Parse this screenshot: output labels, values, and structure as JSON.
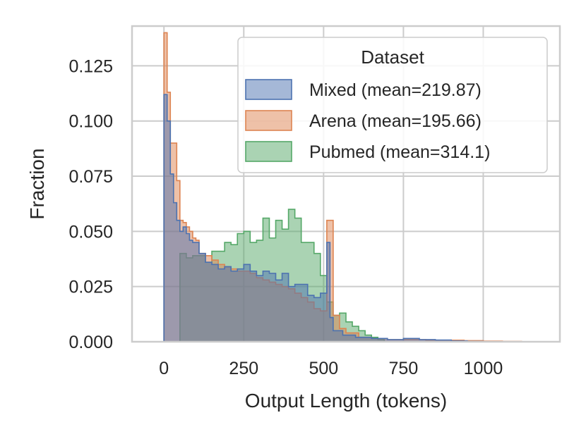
{
  "chart_data": {
    "type": "histogram",
    "xlabel": "Output Length (tokens)",
    "ylabel": "Fraction",
    "xlim": [
      -100,
      1240
    ],
    "ylim": [
      0,
      0.143
    ],
    "xticks": [
      0,
      250,
      500,
      750,
      1000
    ],
    "yticks": [
      0.0,
      0.025,
      0.05,
      0.075,
      0.1,
      0.125
    ],
    "xtick_labels": [
      "0",
      "250",
      "500",
      "750",
      "1000"
    ],
    "ytick_labels": [
      "0.000",
      "0.025",
      "0.050",
      "0.075",
      "0.100",
      "0.125"
    ],
    "grid": true,
    "legend": {
      "title": "Dataset",
      "position": "top-right"
    },
    "series": [
      {
        "name": "Pubmed (mean=314.1)",
        "color": "#55a868",
        "bin_edges": [
          0,
          50,
          70,
          90,
          110,
          130,
          150,
          170,
          190,
          210,
          230,
          250,
          270,
          290,
          310,
          330,
          350,
          370,
          390,
          410,
          430,
          450,
          470,
          490,
          510,
          530,
          550,
          570,
          590,
          610,
          630,
          650,
          670,
          690,
          710
        ],
        "values": [
          0.0,
          0.04,
          0.038,
          0.039,
          0.039,
          0.036,
          0.041,
          0.041,
          0.045,
          0.044,
          0.049,
          0.05,
          0.045,
          0.046,
          0.056,
          0.047,
          0.055,
          0.051,
          0.06,
          0.056,
          0.045,
          0.045,
          0.04,
          0.03,
          0.018,
          0.012,
          0.013,
          0.009,
          0.007,
          0.005,
          0.003,
          0.002,
          0.001,
          0.0
        ]
      },
      {
        "name": "Arena (mean=195.66)",
        "color": "#dd8452",
        "bin_edges": [
          0,
          10,
          20,
          30,
          40,
          50,
          60,
          70,
          80,
          90,
          100,
          110,
          130,
          150,
          170,
          190,
          210,
          230,
          250,
          270,
          290,
          310,
          330,
          350,
          370,
          390,
          410,
          430,
          450,
          470,
          490,
          510,
          530,
          550,
          570,
          610,
          650,
          700,
          760,
          820,
          880,
          940,
          1000,
          1060,
          1120
        ],
        "values": [
          0.14,
          0.113,
          0.09,
          0.09,
          0.073,
          0.055,
          0.054,
          0.052,
          0.05,
          0.047,
          0.046,
          0.04,
          0.039,
          0.037,
          0.035,
          0.034,
          0.033,
          0.032,
          0.032,
          0.031,
          0.029,
          0.028,
          0.027,
          0.026,
          0.025,
          0.024,
          0.022,
          0.02,
          0.018,
          0.015,
          0.014,
          0.055,
          0.012,
          0.006,
          0.004,
          0.002,
          0.0015,
          0.001,
          0.001,
          0.0007,
          0.0007,
          0.0005,
          0.0003,
          0.0002
        ]
      },
      {
        "name": "Mixed (mean=219.87)",
        "color": "#4c72b0",
        "bin_edges": [
          0,
          10,
          20,
          30,
          40,
          50,
          60,
          70,
          80,
          90,
          110,
          130,
          150,
          170,
          190,
          210,
          230,
          250,
          270,
          290,
          310,
          330,
          350,
          370,
          390,
          410,
          430,
          450,
          470,
          490,
          510,
          520,
          530,
          560,
          600,
          650,
          700,
          750,
          800,
          850,
          900,
          950,
          1000
        ],
        "values": [
          0.112,
          0.1,
          0.076,
          0.063,
          0.055,
          0.05,
          0.052,
          0.049,
          0.046,
          0.045,
          0.04,
          0.036,
          0.035,
          0.033,
          0.034,
          0.032,
          0.033,
          0.035,
          0.032,
          0.03,
          0.032,
          0.031,
          0.028,
          0.031,
          0.025,
          0.026,
          0.026,
          0.021,
          0.02,
          0.022,
          0.045,
          0.011,
          0.005,
          0.003,
          0.002,
          0.0015,
          0.001,
          0.0015,
          0.001,
          0.0008,
          0.0004,
          0.0002
        ]
      }
    ],
    "legend_order": [
      "Mixed (mean=219.87)",
      "Arena (mean=195.66)",
      "Pubmed (mean=314.1)"
    ]
  }
}
